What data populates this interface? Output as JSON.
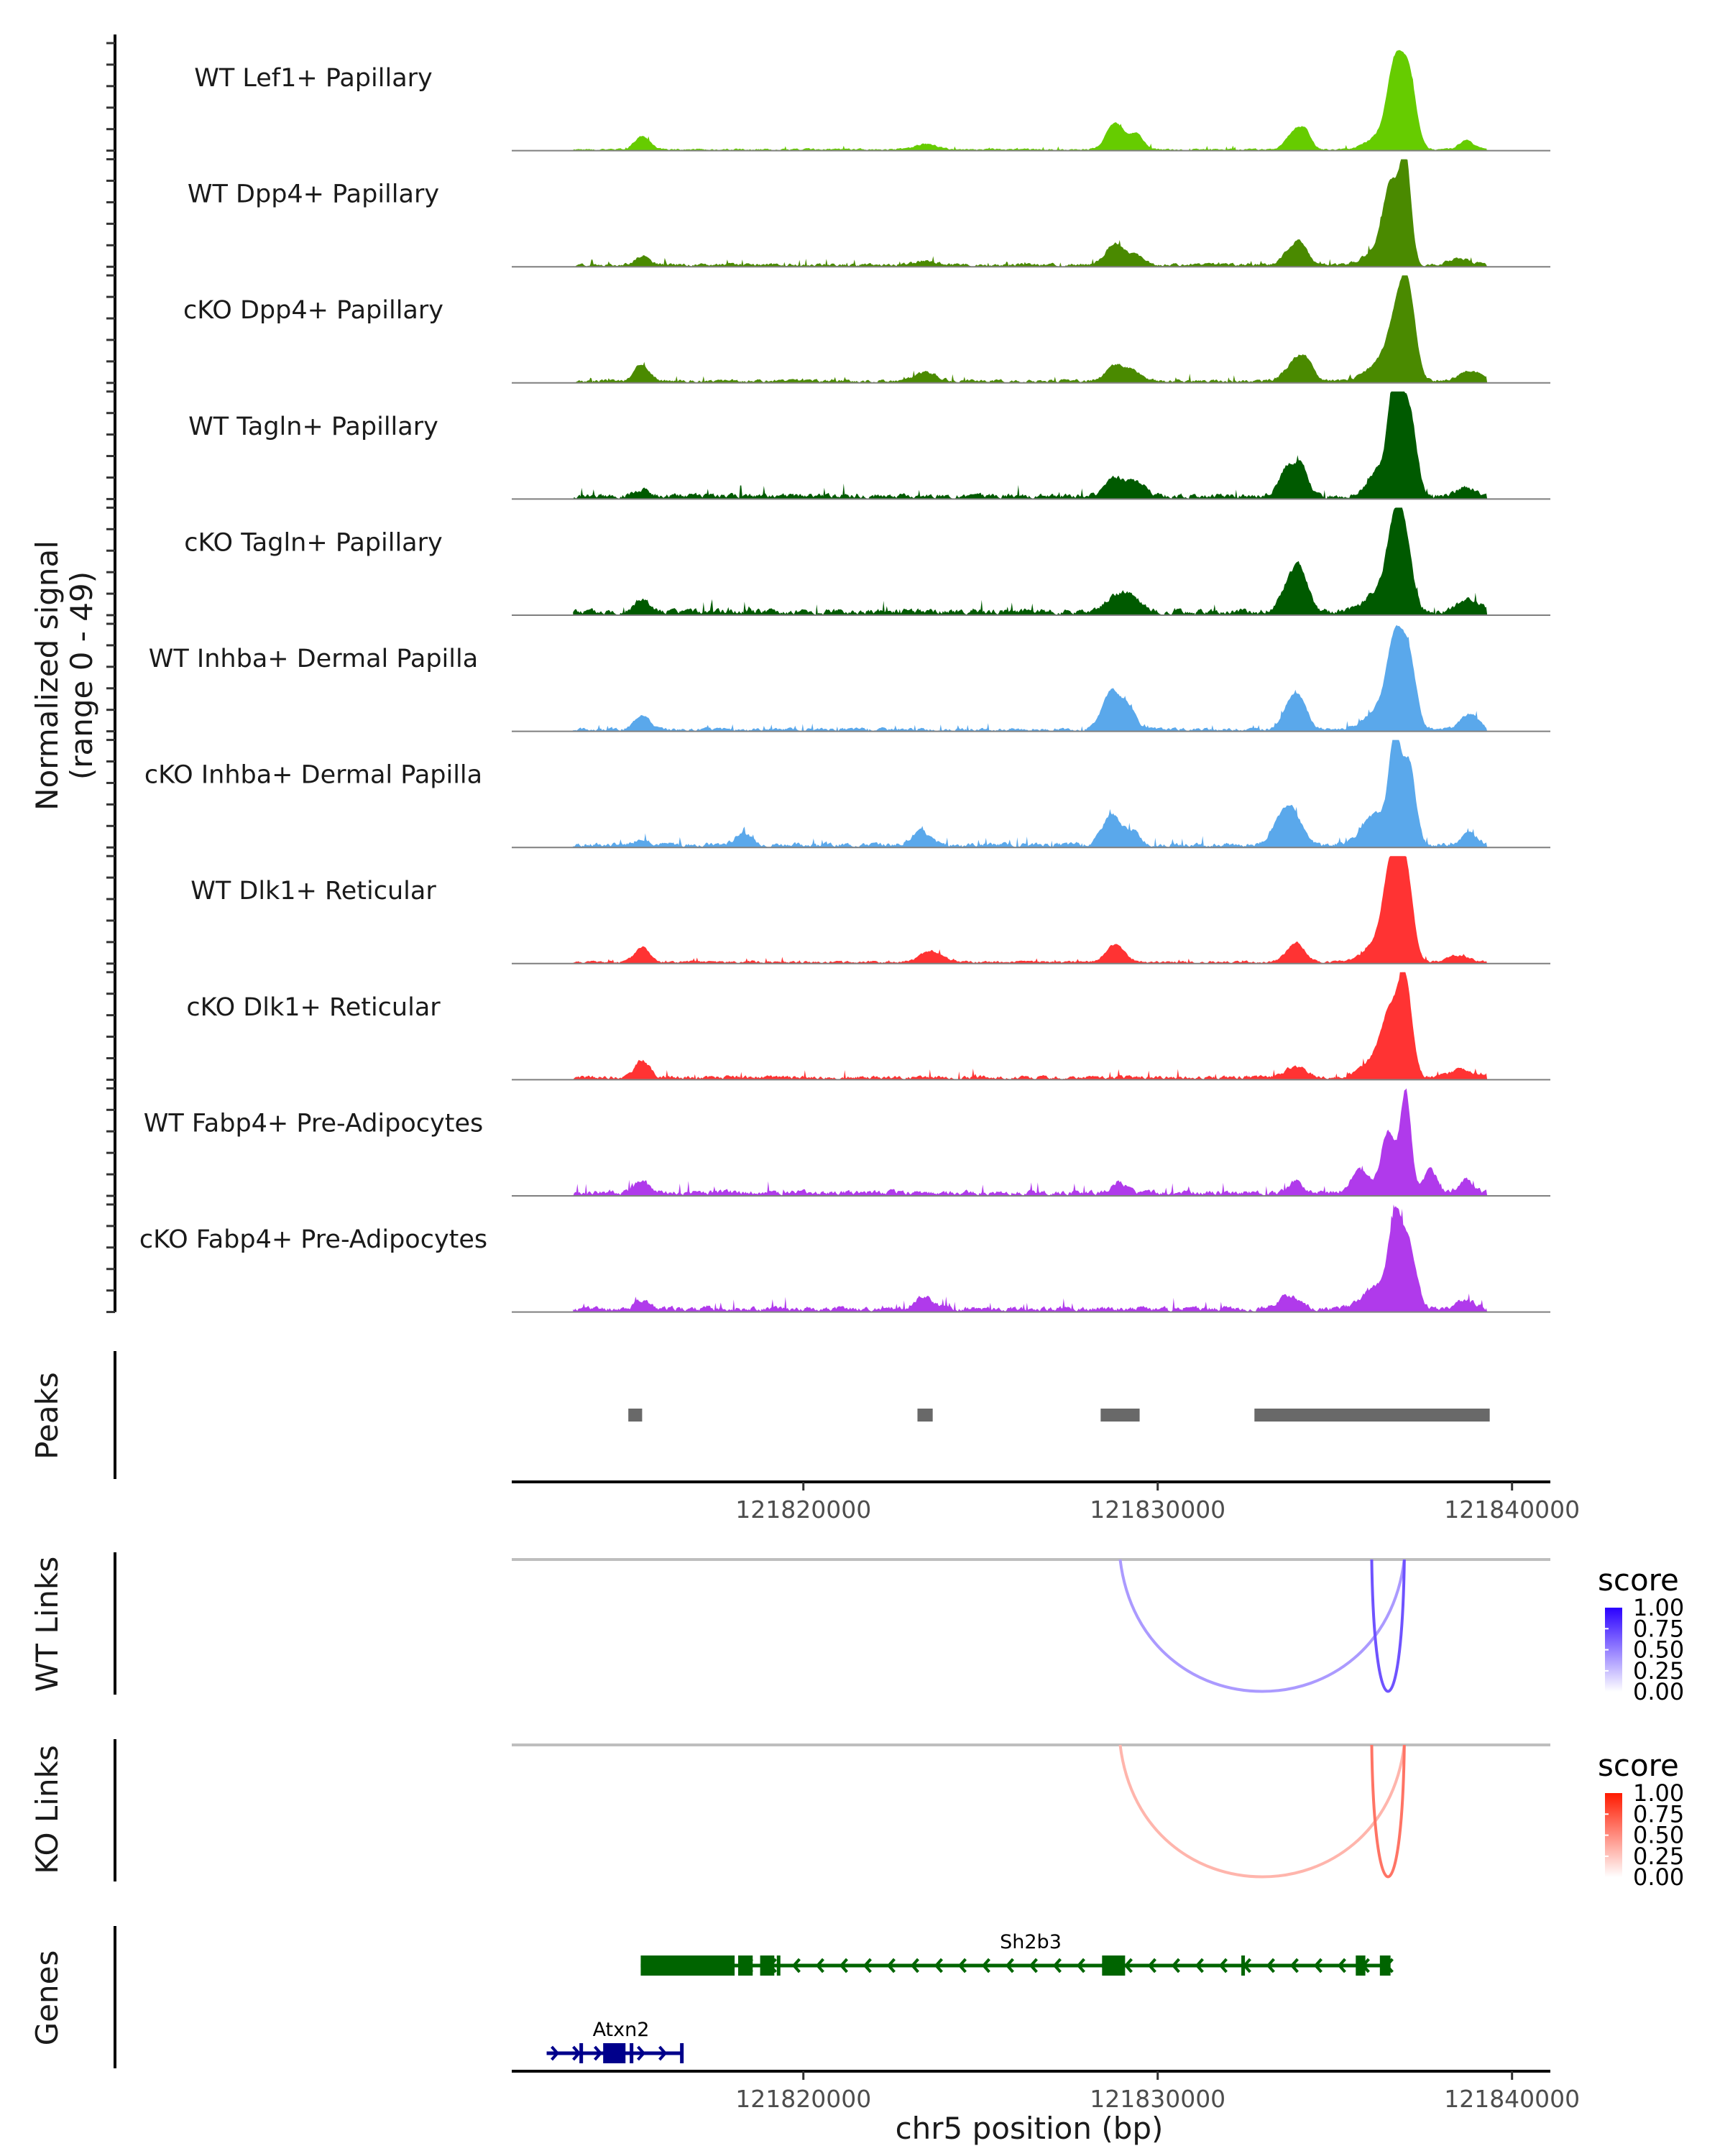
{
  "chart_data": {
    "type": "area",
    "title": "",
    "xlabel": "chr5 position (bp)",
    "xlim": [
      121811770,
      121841000
    ],
    "x_ticks": [
      121820000,
      121830000,
      121840000
    ],
    "x_tick_labels": [
      "121820000",
      "121830000",
      "121840000"
    ],
    "coverage": {
      "ylabel_line1": "Normalized signal",
      "ylabel_line2": "(range 0 - 49)",
      "ylim": [
        0,
        49
      ],
      "data_extent": [
        121813500,
        121839300
      ],
      "tracks": [
        {
          "name": "WT Lef1+ Papillary",
          "color": "#66CC00",
          "noise": 0.6,
          "noise_seed": 1,
          "peaks": [
            [
              121815450,
              220,
              6
            ],
            [
              121823450,
              300,
              2.5
            ],
            [
              121828800,
              250,
              12
            ],
            [
              121829400,
              200,
              7
            ],
            [
              121833900,
              250,
              9
            ],
            [
              121834200,
              150,
              5
            ],
            [
              121836700,
              220,
              36
            ],
            [
              121837100,
              200,
              31
            ],
            [
              121836300,
              400,
              6
            ],
            [
              121838700,
              200,
              4
            ]
          ]
        },
        {
          "name": "WT Dpp4+ Papillary",
          "color": "#4A8A00",
          "noise": 1.0,
          "noise_seed": 2,
          "peaks": [
            [
              121815450,
              200,
              4
            ],
            [
              121823450,
              300,
              2
            ],
            [
              121828800,
              260,
              10
            ],
            [
              121829400,
              200,
              4
            ],
            [
              121833800,
              250,
              8
            ],
            [
              121834100,
              180,
              6
            ],
            [
              121836600,
              220,
              32
            ],
            [
              121837000,
              150,
              45
            ],
            [
              121836300,
              400,
              8
            ],
            [
              121838500,
              300,
              3
            ]
          ]
        },
        {
          "name": "cKO Dpp4+ Papillary",
          "color": "#4A8A00",
          "noise": 1.0,
          "noise_seed": 3,
          "peaks": [
            [
              121815450,
              200,
              8
            ],
            [
              121823450,
              300,
              4
            ],
            [
              121828800,
              260,
              7
            ],
            [
              121829300,
              250,
              4
            ],
            [
              121833900,
              280,
              9
            ],
            [
              121834200,
              200,
              6
            ],
            [
              121836800,
              260,
              30
            ],
            [
              121837100,
              200,
              29
            ],
            [
              121836300,
              400,
              8
            ],
            [
              121838800,
              300,
              5
            ]
          ]
        },
        {
          "name": "WT Tagln+ Papillary",
          "color": "#005A00",
          "noise": 1.6,
          "noise_seed": 4,
          "peaks": [
            [
              121815450,
              200,
              3
            ],
            [
              121828800,
              250,
              8
            ],
            [
              121829400,
              250,
              6
            ],
            [
              121833700,
              250,
              14
            ],
            [
              121834100,
              180,
              10
            ],
            [
              121836700,
              180,
              49
            ],
            [
              121837100,
              200,
              38
            ],
            [
              121836300,
              350,
              12
            ],
            [
              121838700,
              250,
              4
            ]
          ]
        },
        {
          "name": "cKO Tagln+ Papillary",
          "color": "#005A00",
          "noise": 1.8,
          "noise_seed": 5,
          "peaks": [
            [
              121815450,
              200,
              6
            ],
            [
              121829200,
              300,
              8
            ],
            [
              121828700,
              250,
              5
            ],
            [
              121833800,
              280,
              16
            ],
            [
              121834100,
              200,
              10
            ],
            [
              121836700,
              220,
              34
            ],
            [
              121837000,
              200,
              25
            ],
            [
              121836300,
              400,
              10
            ],
            [
              121838800,
              300,
              6
            ]
          ]
        },
        {
          "name": "WT Inhba+ Dermal Papilla",
          "color": "#5AA8EB",
          "noise": 1.0,
          "noise_seed": 6,
          "peaks": [
            [
              121815450,
              200,
              7
            ],
            [
              121828700,
              250,
              18
            ],
            [
              121829200,
              200,
              9
            ],
            [
              121833800,
              250,
              14
            ],
            [
              121834100,
              200,
              6
            ],
            [
              121836700,
              220,
              36
            ],
            [
              121837100,
              200,
              30
            ],
            [
              121836300,
              400,
              10
            ],
            [
              121838800,
              250,
              7
            ]
          ]
        },
        {
          "name": "cKO Inhba+ Dermal Papilla",
          "color": "#5AA8EB",
          "noise": 1.4,
          "noise_seed": 7,
          "peaks": [
            [
              121815450,
              200,
              3
            ],
            [
              121818300,
              200,
              6
            ],
            [
              121823300,
              250,
              6
            ],
            [
              121828700,
              250,
              14
            ],
            [
              121829300,
              200,
              6
            ],
            [
              121833400,
              250,
              8
            ],
            [
              121833800,
              250,
              16
            ],
            [
              121836700,
              160,
              44
            ],
            [
              121837100,
              180,
              36
            ],
            [
              121836200,
              400,
              14
            ],
            [
              121838800,
              250,
              5
            ]
          ]
        },
        {
          "name": "WT Dlk1+ Reticular",
          "color": "#FF3333",
          "noise": 0.8,
          "noise_seed": 8,
          "peaks": [
            [
              121815450,
              200,
              7
            ],
            [
              121823600,
              300,
              5
            ],
            [
              121828800,
              250,
              8
            ],
            [
              121833900,
              250,
              9
            ],
            [
              121836600,
              220,
              38
            ],
            [
              121837000,
              200,
              40
            ],
            [
              121836300,
              400,
              10
            ],
            [
              121838500,
              300,
              3
            ]
          ]
        },
        {
          "name": "cKO Dlk1+ Reticular",
          "color": "#FF3333",
          "noise": 1.2,
          "noise_seed": 9,
          "peaks": [
            [
              121815450,
              200,
              8
            ],
            [
              121833900,
              300,
              5
            ],
            [
              121836600,
              250,
              24
            ],
            [
              121837000,
              180,
              38
            ],
            [
              121836300,
              450,
              10
            ],
            [
              121838600,
              300,
              4
            ]
          ]
        },
        {
          "name": "WT Fabp4+ Pre-Adipocytes",
          "color": "#B03AEB",
          "noise": 1.6,
          "noise_seed": 10,
          "peaks": [
            [
              121815450,
              200,
              6
            ],
            [
              121828900,
              200,
              5
            ],
            [
              121833900,
              200,
              5
            ],
            [
              121836500,
              200,
              28
            ],
            [
              121837000,
              150,
              46
            ],
            [
              121835700,
              250,
              10
            ],
            [
              121837700,
              200,
              10
            ],
            [
              121838700,
              200,
              6
            ]
          ]
        },
        {
          "name": "cKO Fabp4+ Pre-Adipocytes",
          "color": "#B03AEB",
          "noise": 1.6,
          "noise_seed": 11,
          "peaks": [
            [
              121815450,
              200,
              4
            ],
            [
              121823400,
              250,
              6
            ],
            [
              121833700,
              300,
              6
            ],
            [
              121836700,
              180,
              38
            ],
            [
              121837100,
              200,
              28
            ],
            [
              121836200,
              400,
              10
            ],
            [
              121838700,
              250,
              4
            ]
          ]
        }
      ]
    },
    "peaks_track": {
      "label": "Peaks",
      "color": "#696969",
      "regions": [
        [
          121815060,
          121815450
        ],
        [
          121823220,
          121823650
        ],
        [
          121828390,
          121829490
        ],
        [
          121832730,
          121839370
        ]
      ]
    },
    "links": [
      {
        "label": "WT Links",
        "legend_title": "score",
        "low_color": "#FFFFFF",
        "high_color": "#2A00FF",
        "legend_ticks": [
          "1.00",
          "0.75",
          "0.50",
          "0.25",
          "0.00"
        ],
        "arcs": [
          {
            "start": 121828940,
            "end": 121836960,
            "score": 0.35
          },
          {
            "start": 121836040,
            "end": 121836960,
            "score": 0.75
          }
        ]
      },
      {
        "label": "KO Links",
        "legend_title": "score",
        "low_color": "#FFFFFF",
        "high_color": "#FF1A00",
        "legend_ticks": [
          "1.00",
          "0.75",
          "0.50",
          "0.25",
          "0.00"
        ],
        "arcs": [
          {
            "start": 121828940,
            "end": 121836960,
            "score": 0.25
          },
          {
            "start": 121836040,
            "end": 121836960,
            "score": 0.65
          }
        ]
      }
    ],
    "genes": {
      "label": "Genes",
      "items": [
        {
          "name": "Sh2b3",
          "strand": "-",
          "color": "#006400",
          "start": 121815410,
          "end": 121836570,
          "exons": [
            [
              121815410,
              121818060
            ],
            [
              121818160,
              121818570
            ],
            [
              121818780,
              121819180
            ],
            [
              121819250,
              121819330
            ],
            [
              121828430,
              121829080
            ],
            [
              121832360,
              121832430
            ],
            [
              121835590,
              121835860
            ],
            [
              121836270,
              121836570
            ]
          ]
        },
        {
          "name": "Atxn2",
          "strand": "+",
          "color": "#00008B",
          "start": 121812755,
          "end": 121816550,
          "exons": [
            [
              121813680,
              121813780
            ],
            [
              121814350,
              121814980
            ],
            [
              121815100,
              121815200
            ],
            [
              121816520,
              121816560
            ]
          ]
        }
      ]
    }
  }
}
